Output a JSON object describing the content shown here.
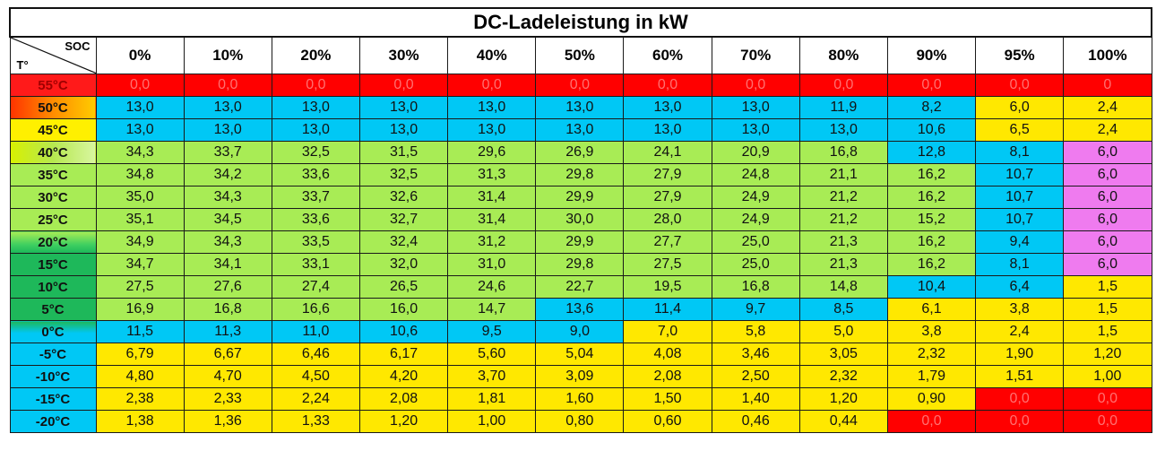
{
  "chart_data": {
    "type": "table",
    "title": "DC-Ladeleistung in kW",
    "corner": {
      "col_label": "SOC",
      "row_label": "T°"
    },
    "columns": [
      "0%",
      "10%",
      "20%",
      "30%",
      "40%",
      "50%",
      "60%",
      "70%",
      "80%",
      "90%",
      "95%",
      "100%"
    ],
    "rows": [
      {
        "label": "55°C",
        "values": [
          "0,0",
          "0,0",
          "0,0",
          "0,0",
          "0,0",
          "0,0",
          "0,0",
          "0,0",
          "0,0",
          "0,0",
          "0,0",
          "0"
        ]
      },
      {
        "label": "50°C",
        "values": [
          "13,0",
          "13,0",
          "13,0",
          "13,0",
          "13,0",
          "13,0",
          "13,0",
          "13,0",
          "11,9",
          "8,2",
          "6,0",
          "2,4"
        ]
      },
      {
        "label": "45°C",
        "values": [
          "13,0",
          "13,0",
          "13,0",
          "13,0",
          "13,0",
          "13,0",
          "13,0",
          "13,0",
          "13,0",
          "10,6",
          "6,5",
          "2,4"
        ]
      },
      {
        "label": "40°C",
        "values": [
          "34,3",
          "33,7",
          "32,5",
          "31,5",
          "29,6",
          "26,9",
          "24,1",
          "20,9",
          "16,8",
          "12,8",
          "8,1",
          "6,0"
        ]
      },
      {
        "label": "35°C",
        "values": [
          "34,8",
          "34,2",
          "33,6",
          "32,5",
          "31,3",
          "29,8",
          "27,9",
          "24,8",
          "21,1",
          "16,2",
          "10,7",
          "6,0"
        ]
      },
      {
        "label": "30°C",
        "values": [
          "35,0",
          "34,3",
          "33,7",
          "32,6",
          "31,4",
          "29,9",
          "27,9",
          "24,9",
          "21,2",
          "16,2",
          "10,7",
          "6,0"
        ]
      },
      {
        "label": "25°C",
        "values": [
          "35,1",
          "34,5",
          "33,6",
          "32,7",
          "31,4",
          "30,0",
          "28,0",
          "24,9",
          "21,2",
          "15,2",
          "10,7",
          "6,0"
        ]
      },
      {
        "label": "20°C",
        "values": [
          "34,9",
          "34,3",
          "33,5",
          "32,4",
          "31,2",
          "29,9",
          "27,7",
          "25,0",
          "21,3",
          "16,2",
          "9,4",
          "6,0"
        ]
      },
      {
        "label": "15°C",
        "values": [
          "34,7",
          "34,1",
          "33,1",
          "32,0",
          "31,0",
          "29,8",
          "27,5",
          "25,0",
          "21,3",
          "16,2",
          "8,1",
          "6,0"
        ]
      },
      {
        "label": "10°C",
        "values": [
          "27,5",
          "27,6",
          "27,4",
          "26,5",
          "24,6",
          "22,7",
          "19,5",
          "16,8",
          "14,8",
          "10,4",
          "6,4",
          "1,5"
        ]
      },
      {
        "label": "5°C",
        "values": [
          "16,9",
          "16,8",
          "16,6",
          "16,0",
          "14,7",
          "13,6",
          "11,4",
          "9,7",
          "8,5",
          "6,1",
          "3,8",
          "1,5"
        ]
      },
      {
        "label": "0°C",
        "values": [
          "11,5",
          "11,3",
          "11,0",
          "10,6",
          "9,5",
          "9,0",
          "7,0",
          "5,8",
          "5,0",
          "3,8",
          "2,4",
          "1,5"
        ]
      },
      {
        "label": "-5°C",
        "values": [
          "6,79",
          "6,67",
          "6,46",
          "6,17",
          "5,60",
          "5,04",
          "4,08",
          "3,46",
          "3,05",
          "2,32",
          "1,90",
          "1,20"
        ]
      },
      {
        "label": "-10°C",
        "values": [
          "4,80",
          "4,70",
          "4,50",
          "4,20",
          "3,70",
          "3,09",
          "2,08",
          "2,50",
          "2,32",
          "1,79",
          "1,51",
          "1,00"
        ]
      },
      {
        "label": "-15°C",
        "values": [
          "2,38",
          "2,33",
          "2,24",
          "2,08",
          "1,81",
          "1,60",
          "1,50",
          "1,40",
          "1,20",
          "0,90",
          "0,0",
          "0,0"
        ]
      },
      {
        "label": "-20°C",
        "values": [
          "1,38",
          "1,36",
          "1,33",
          "1,20",
          "1,00",
          "0,80",
          "0,60",
          "0,46",
          "0,44",
          "0,0",
          "0,0",
          "0,0"
        ]
      }
    ],
    "cell_colors": [
      [
        "red",
        "red",
        "red",
        "red",
        "red",
        "red",
        "red",
        "red",
        "red",
        "red",
        "red",
        "red"
      ],
      [
        "blue",
        "blue",
        "blue",
        "blue",
        "blue",
        "blue",
        "blue",
        "blue",
        "blue",
        "blue",
        "yellow",
        "yellow"
      ],
      [
        "blue",
        "blue",
        "blue",
        "blue",
        "blue",
        "blue",
        "blue",
        "blue",
        "blue",
        "blue",
        "yellow",
        "yellow"
      ],
      [
        "green",
        "green",
        "green",
        "green",
        "green",
        "green",
        "green",
        "green",
        "green",
        "blue",
        "blue",
        "pink"
      ],
      [
        "green",
        "green",
        "green",
        "green",
        "green",
        "green",
        "green",
        "green",
        "green",
        "green",
        "blue",
        "pink"
      ],
      [
        "green",
        "green",
        "green",
        "green",
        "green",
        "green",
        "green",
        "green",
        "green",
        "green",
        "blue",
        "pink"
      ],
      [
        "green",
        "green",
        "green",
        "green",
        "green",
        "green",
        "green",
        "green",
        "green",
        "green",
        "blue",
        "pink"
      ],
      [
        "green",
        "green",
        "green",
        "green",
        "green",
        "green",
        "green",
        "green",
        "green",
        "green",
        "blue",
        "pink"
      ],
      [
        "green",
        "green",
        "green",
        "green",
        "green",
        "green",
        "green",
        "green",
        "green",
        "green",
        "blue",
        "pink"
      ],
      [
        "green",
        "green",
        "green",
        "green",
        "green",
        "green",
        "green",
        "green",
        "green",
        "blue",
        "blue",
        "yellow"
      ],
      [
        "green",
        "green",
        "green",
        "green",
        "green",
        "blue",
        "blue",
        "blue",
        "blue",
        "yellow",
        "yellow",
        "yellow"
      ],
      [
        "blue",
        "blue",
        "blue",
        "blue",
        "blue",
        "blue",
        "yellow",
        "yellow",
        "yellow",
        "yellow",
        "yellow",
        "yellow"
      ],
      [
        "yellow",
        "yellow",
        "yellow",
        "yellow",
        "yellow",
        "yellow",
        "yellow",
        "yellow",
        "yellow",
        "yellow",
        "yellow",
        "yellow"
      ],
      [
        "yellow",
        "yellow",
        "yellow",
        "yellow",
        "yellow",
        "yellow",
        "yellow",
        "yellow",
        "yellow",
        "yellow",
        "yellow",
        "yellow"
      ],
      [
        "yellow",
        "yellow",
        "yellow",
        "yellow",
        "yellow",
        "yellow",
        "yellow",
        "yellow",
        "yellow",
        "yellow",
        "red",
        "red"
      ],
      [
        "yellow",
        "yellow",
        "yellow",
        "yellow",
        "yellow",
        "yellow",
        "yellow",
        "yellow",
        "yellow",
        "red",
        "red",
        "red"
      ]
    ],
    "row_label_colors": [
      "red",
      "orange",
      "yellow",
      "lgreen",
      "green",
      "green",
      "green",
      "mix",
      "dgreen",
      "dgreen",
      "dgreen",
      "cyanmix",
      "cyan",
      "cyan",
      "cyan",
      "cyan"
    ]
  }
}
